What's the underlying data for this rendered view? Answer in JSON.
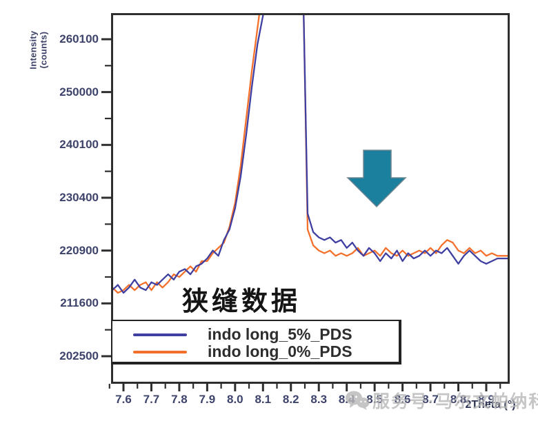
{
  "figure": {
    "y_axis_title": "Intensity (counts)",
    "x_axis_title": "2Theta (°)",
    "annotation": "狭缝数据",
    "watermark": "服务号·马尔文帕纳科",
    "colors": {
      "curve_5pct": "#3f3fa2",
      "curve_0pct": "#f4702a",
      "arrow": "#1b7f9e",
      "axis_text": "#3d436a",
      "frame": "#2e2e2e",
      "watermark": "#b7b7b7"
    }
  },
  "chart_data": {
    "type": "line",
    "title": "",
    "xlabel": "2Theta (°)",
    "ylabel": "Intensity (counts)",
    "y_scale": "sqrt",
    "xlim": [
      7.546,
      8.977
    ],
    "ylim_visible": [
      198000,
      264800
    ],
    "grid": false,
    "legend_position": "bottom-left box",
    "x_ticks": [
      7.6,
      7.7,
      7.8,
      7.9,
      8.0,
      8.1,
      8.2,
      8.3,
      8.4,
      8.5,
      8.6,
      8.7,
      8.8,
      8.9
    ],
    "y_ticks": [
      260100,
      250000,
      240100,
      230400,
      220900,
      211600,
      202500
    ],
    "y_minor_ticks": [
      255025,
      245025,
      235225,
      225625,
      216225,
      207025
    ],
    "x": [
      7.54,
      7.56,
      7.58,
      7.6,
      7.62,
      7.64,
      7.66,
      7.68,
      7.7,
      7.72,
      7.74,
      7.76,
      7.78,
      7.8,
      7.82,
      7.84,
      7.86,
      7.88,
      7.9,
      7.92,
      7.94,
      7.96,
      7.98,
      8.0,
      8.02,
      8.04,
      8.06,
      8.08,
      8.1,
      8.12,
      8.14,
      8.16,
      8.18,
      8.2,
      8.22,
      8.24,
      8.26,
      8.28,
      8.3,
      8.32,
      8.34,
      8.36,
      8.38,
      8.4,
      8.42,
      8.44,
      8.46,
      8.48,
      8.5,
      8.52,
      8.54,
      8.56,
      8.58,
      8.6,
      8.62,
      8.64,
      8.66,
      8.68,
      8.7,
      8.72,
      8.74,
      8.76,
      8.78,
      8.8,
      8.82,
      8.84,
      8.86,
      8.88,
      8.9,
      8.92,
      8.94,
      8.96,
      8.98
    ],
    "series": [
      {
        "name": "indo long_5%_PDS",
        "color": "#3f3fa2",
        "values": [
          214369,
          213906,
          214832,
          213444,
          214369,
          215760,
          214369,
          213906,
          215296,
          214832,
          215760,
          216690,
          215760,
          217156,
          217622,
          216690,
          218089,
          218556,
          219492,
          220900,
          219961,
          222784,
          224676,
          228484,
          234256,
          242064,
          251001,
          259081,
          264690,
          280900,
          302500,
          309136,
          300304,
          291600,
          286225,
          280900,
          227529,
          224202,
          223256,
          222784,
          223256,
          222312,
          222784,
          221370,
          222312,
          220900,
          219961,
          221370,
          220430,
          219024,
          220430,
          219492,
          220900,
          219024,
          220430,
          219492,
          219961,
          220900,
          219961,
          220900,
          220430,
          221370,
          219961,
          218556,
          219961,
          220900,
          219961,
          219024,
          218556,
          219024,
          219492,
          219492,
          219492
        ]
      },
      {
        "name": "indo long_0%_PDS",
        "color": "#f4702a",
        "values": [
          213906,
          214369,
          213444,
          213906,
          214832,
          213906,
          214832,
          215296,
          213906,
          215296,
          214369,
          215296,
          216690,
          216225,
          217156,
          218089,
          217156,
          219024,
          219024,
          220430,
          221370,
          222312,
          225150,
          229441,
          236196,
          245025,
          254016,
          262144,
          270400,
          289444,
          309136,
          313600,
          304704,
          295936,
          289444,
          283024,
          224676,
          221841,
          220900,
          220430,
          220900,
          219961,
          220430,
          219961,
          220430,
          221370,
          219961,
          220430,
          220900,
          219961,
          221370,
          220430,
          219961,
          220900,
          219961,
          220430,
          220900,
          220430,
          221370,
          220430,
          221841,
          222784,
          222312,
          220900,
          220430,
          221370,
          220430,
          220900,
          219961,
          220430,
          219961,
          219961,
          219961
        ]
      }
    ],
    "annotations": [
      {
        "type": "text",
        "text": "狭缝数据",
        "x": 7.95,
        "y": 212500
      },
      {
        "type": "arrow-down",
        "x": 8.5,
        "y": 235000
      }
    ]
  },
  "legend": {
    "items": [
      {
        "label": "indo long_5%_PDS"
      },
      {
        "label": "indo long_0%_PDS"
      }
    ]
  }
}
